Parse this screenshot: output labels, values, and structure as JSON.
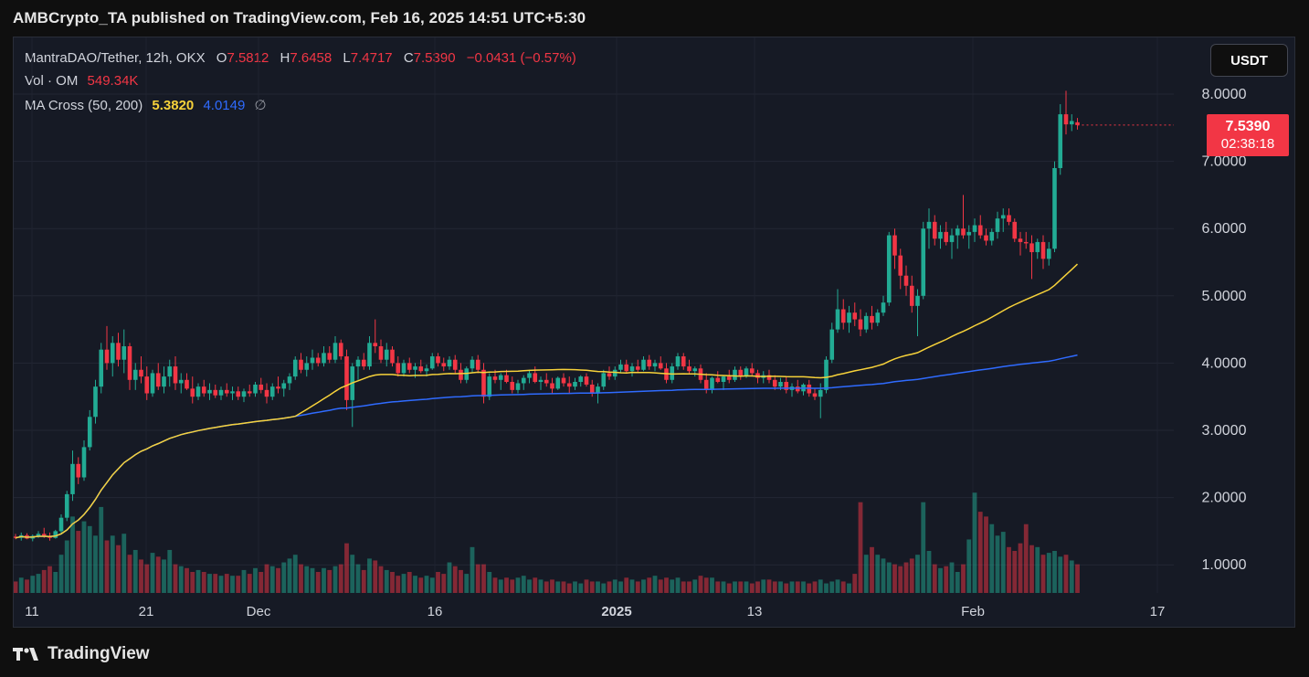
{
  "header": {
    "publisher_line": "AMBCrypto_TA published on TradingView.com, Feb 16, 2025 14:51 UTC+5:30"
  },
  "legend": {
    "symbol": "MantraDAO/Tether, 12h, OKX",
    "open_key": "O",
    "open": "7.5812",
    "high_key": "H",
    "high": "7.6458",
    "low_key": "L",
    "low": "7.4717",
    "close_key": "C",
    "close": "7.5390",
    "change": "−0.0431 (−0.57%)",
    "vol_label": "Vol · OM",
    "vol_value": "549.34K",
    "ma_label": "MA Cross (50, 200)",
    "ma_fast": "5.3820",
    "ma_slow": "4.0149",
    "ma_symbol": "∅"
  },
  "currency_button": "USDT",
  "last_price": {
    "price": "7.5390",
    "countdown": "02:38:18"
  },
  "footer": {
    "logo_icon": "tradingview-logo-icon",
    "brand": "TradingView"
  },
  "colors": {
    "up": "#22ab94",
    "down": "#f23645",
    "ma_fast": "#f7d23a",
    "ma_slow": "#2f6bff",
    "background": "#161a25"
  },
  "chart_data": {
    "type": "candlestick",
    "interval": "12h",
    "grid": true,
    "y_axis": {
      "labels": [
        "8.0000",
        "7.0000",
        "6.0000",
        "5.0000",
        "4.0000",
        "3.0000",
        "2.0000",
        "1.0000"
      ],
      "range": [
        0.8,
        8.2
      ]
    },
    "x_axis": {
      "labels": [
        "11",
        "21",
        "Dec",
        "16",
        "2025",
        "13",
        "Feb",
        "17"
      ]
    },
    "ohlc": [
      [
        1.42,
        1.46,
        1.38,
        1.4
      ],
      [
        1.4,
        1.48,
        1.36,
        1.44
      ],
      [
        1.44,
        1.47,
        1.38,
        1.39
      ],
      [
        1.39,
        1.45,
        1.35,
        1.43
      ],
      [
        1.43,
        1.5,
        1.4,
        1.46
      ],
      [
        1.46,
        1.55,
        1.4,
        1.42
      ],
      [
        1.42,
        1.48,
        1.36,
        1.4
      ],
      [
        1.4,
        1.52,
        1.39,
        1.5
      ],
      [
        1.5,
        1.75,
        1.45,
        1.7
      ],
      [
        1.7,
        2.1,
        1.65,
        2.05
      ],
      [
        2.05,
        2.7,
        1.95,
        2.5
      ],
      [
        2.5,
        2.6,
        2.2,
        2.3
      ],
      [
        2.3,
        2.85,
        2.25,
        2.75
      ],
      [
        2.75,
        3.3,
        2.7,
        3.2
      ],
      [
        3.2,
        3.75,
        3.1,
        3.65
      ],
      [
        3.65,
        4.3,
        3.55,
        4.2
      ],
      [
        4.2,
        4.55,
        3.9,
        4.0
      ],
      [
        4.0,
        4.4,
        3.8,
        4.3
      ],
      [
        4.3,
        4.45,
        3.95,
        4.05
      ],
      [
        4.05,
        4.5,
        3.85,
        4.25
      ],
      [
        4.25,
        4.3,
        3.6,
        3.75
      ],
      [
        3.75,
        4.0,
        3.6,
        3.9
      ],
      [
        3.9,
        4.1,
        3.7,
        3.8
      ],
      [
        3.8,
        3.95,
        3.45,
        3.55
      ],
      [
        3.55,
        3.9,
        3.5,
        3.85
      ],
      [
        3.85,
        4.0,
        3.6,
        3.65
      ],
      [
        3.65,
        3.95,
        3.55,
        3.8
      ],
      [
        3.8,
        4.05,
        3.65,
        3.95
      ],
      [
        3.95,
        4.1,
        3.6,
        3.7
      ],
      [
        3.7,
        3.85,
        3.55,
        3.75
      ],
      [
        3.75,
        3.85,
        3.6,
        3.62
      ],
      [
        3.62,
        3.8,
        3.4,
        3.5
      ],
      [
        3.5,
        3.7,
        3.45,
        3.65
      ],
      [
        3.65,
        3.75,
        3.5,
        3.55
      ],
      [
        3.55,
        3.7,
        3.45,
        3.6
      ],
      [
        3.6,
        3.68,
        3.48,
        3.52
      ],
      [
        3.52,
        3.65,
        3.45,
        3.6
      ],
      [
        3.6,
        3.7,
        3.5,
        3.55
      ],
      [
        3.55,
        3.65,
        3.45,
        3.58
      ],
      [
        3.58,
        3.65,
        3.45,
        3.5
      ],
      [
        3.5,
        3.62,
        3.42,
        3.58
      ],
      [
        3.58,
        3.68,
        3.5,
        3.55
      ],
      [
        3.55,
        3.72,
        3.5,
        3.68
      ],
      [
        3.68,
        3.78,
        3.55,
        3.6
      ],
      [
        3.6,
        3.7,
        3.4,
        3.5
      ],
      [
        3.5,
        3.7,
        3.45,
        3.65
      ],
      [
        3.65,
        3.8,
        3.55,
        3.62
      ],
      [
        3.62,
        3.75,
        3.5,
        3.7
      ],
      [
        3.7,
        3.85,
        3.6,
        3.8
      ],
      [
        3.8,
        4.1,
        3.75,
        4.05
      ],
      [
        4.05,
        4.15,
        3.85,
        3.9
      ],
      [
        3.9,
        4.1,
        3.8,
        4.0
      ],
      [
        4.0,
        4.2,
        3.9,
        4.08
      ],
      [
        4.08,
        4.15,
        3.95,
        4.0
      ],
      [
        4.0,
        4.25,
        3.95,
        4.15
      ],
      [
        4.15,
        4.25,
        4.0,
        4.05
      ],
      [
        4.05,
        4.4,
        4.0,
        4.3
      ],
      [
        4.3,
        4.35,
        4.05,
        4.1
      ],
      [
        4.1,
        4.2,
        3.3,
        3.45
      ],
      [
        3.45,
        4.0,
        3.05,
        3.95
      ],
      [
        3.95,
        4.1,
        3.75,
        4.05
      ],
      [
        4.05,
        4.15,
        3.9,
        3.95
      ],
      [
        3.95,
        4.4,
        3.9,
        4.3
      ],
      [
        4.3,
        4.65,
        4.15,
        4.25
      ],
      [
        4.25,
        4.35,
        4.0,
        4.05
      ],
      [
        4.05,
        4.3,
        3.95,
        4.2
      ],
      [
        4.2,
        4.25,
        3.95,
        4.0
      ],
      [
        4.0,
        4.1,
        3.8,
        3.85
      ],
      [
        3.85,
        4.05,
        3.8,
        4.0
      ],
      [
        4.0,
        4.08,
        3.85,
        3.9
      ],
      [
        3.9,
        4.0,
        3.78,
        3.95
      ],
      [
        3.95,
        4.05,
        3.85,
        3.88
      ],
      [
        3.88,
        3.98,
        3.8,
        3.92
      ],
      [
        3.92,
        4.15,
        3.9,
        4.1
      ],
      [
        4.1,
        4.15,
        3.95,
        4.0
      ],
      [
        4.0,
        4.08,
        3.88,
        3.95
      ],
      [
        3.95,
        4.1,
        3.9,
        4.05
      ],
      [
        4.05,
        4.12,
        3.85,
        3.9
      ],
      [
        3.9,
        4.0,
        3.7,
        3.75
      ],
      [
        3.75,
        3.95,
        3.7,
        3.92
      ],
      [
        3.92,
        4.1,
        3.85,
        4.05
      ],
      [
        4.05,
        4.12,
        3.85,
        3.9
      ],
      [
        3.9,
        4.0,
        3.4,
        3.5
      ],
      [
        3.5,
        3.85,
        3.45,
        3.8
      ],
      [
        3.8,
        3.9,
        3.7,
        3.75
      ],
      [
        3.75,
        3.85,
        3.6,
        3.82
      ],
      [
        3.82,
        3.9,
        3.7,
        3.72
      ],
      [
        3.72,
        3.8,
        3.55,
        3.6
      ],
      [
        3.6,
        3.75,
        3.55,
        3.7
      ],
      [
        3.7,
        3.82,
        3.6,
        3.78
      ],
      [
        3.78,
        3.9,
        3.7,
        3.85
      ],
      [
        3.85,
        3.95,
        3.7,
        3.72
      ],
      [
        3.72,
        3.8,
        3.6,
        3.75
      ],
      [
        3.75,
        3.85,
        3.65,
        3.7
      ],
      [
        3.7,
        3.78,
        3.55,
        3.62
      ],
      [
        3.62,
        3.8,
        3.6,
        3.78
      ],
      [
        3.78,
        3.85,
        3.65,
        3.7
      ],
      [
        3.7,
        3.8,
        3.55,
        3.65
      ],
      [
        3.65,
        3.78,
        3.6,
        3.72
      ],
      [
        3.72,
        3.82,
        3.65,
        3.8
      ],
      [
        3.8,
        3.85,
        3.65,
        3.68
      ],
      [
        3.68,
        3.75,
        3.5,
        3.55
      ],
      [
        3.55,
        3.7,
        3.4,
        3.65
      ],
      [
        3.65,
        3.9,
        3.6,
        3.85
      ],
      [
        3.85,
        3.95,
        3.75,
        3.8
      ],
      [
        3.8,
        3.95,
        3.75,
        3.9
      ],
      [
        3.9,
        4.05,
        3.85,
        3.98
      ],
      [
        3.98,
        4.05,
        3.85,
        3.88
      ],
      [
        3.88,
        4.0,
        3.8,
        3.95
      ],
      [
        3.95,
        4.05,
        3.85,
        3.9
      ],
      [
        3.9,
        4.1,
        3.88,
        4.05
      ],
      [
        4.05,
        4.12,
        3.9,
        3.95
      ],
      [
        3.95,
        4.05,
        3.88,
        4.0
      ],
      [
        4.0,
        4.1,
        3.9,
        3.92
      ],
      [
        3.92,
        4.0,
        3.7,
        3.75
      ],
      [
        3.75,
        4.0,
        3.7,
        3.95
      ],
      [
        3.95,
        4.15,
        3.9,
        4.1
      ],
      [
        4.1,
        4.15,
        3.9,
        3.95
      ],
      [
        3.95,
        4.05,
        3.85,
        3.88
      ],
      [
        3.88,
        3.95,
        3.8,
        3.92
      ],
      [
        3.92,
        3.98,
        3.7,
        3.75
      ],
      [
        3.75,
        3.85,
        3.55,
        3.6
      ],
      [
        3.6,
        3.8,
        3.55,
        3.78
      ],
      [
        3.78,
        3.88,
        3.7,
        3.72
      ],
      [
        3.72,
        3.82,
        3.6,
        3.8
      ],
      [
        3.8,
        3.9,
        3.7,
        3.75
      ],
      [
        3.75,
        3.95,
        3.72,
        3.9
      ],
      [
        3.9,
        3.95,
        3.75,
        3.8
      ],
      [
        3.8,
        3.95,
        3.78,
        3.92
      ],
      [
        3.92,
        4.0,
        3.8,
        3.85
      ],
      [
        3.85,
        3.9,
        3.7,
        3.78
      ],
      [
        3.78,
        3.88,
        3.7,
        3.82
      ],
      [
        3.82,
        3.9,
        3.7,
        3.75
      ],
      [
        3.75,
        3.82,
        3.6,
        3.65
      ],
      [
        3.65,
        3.78,
        3.6,
        3.72
      ],
      [
        3.72,
        3.8,
        3.55,
        3.6
      ],
      [
        3.6,
        3.7,
        3.5,
        3.65
      ],
      [
        3.65,
        3.75,
        3.55,
        3.58
      ],
      [
        3.58,
        3.7,
        3.52,
        3.68
      ],
      [
        3.68,
        3.75,
        3.5,
        3.55
      ],
      [
        3.55,
        3.62,
        3.45,
        3.5
      ],
      [
        3.5,
        3.7,
        3.18,
        3.6
      ],
      [
        3.6,
        4.1,
        3.55,
        4.05
      ],
      [
        4.05,
        4.6,
        4.0,
        4.5
      ],
      [
        4.5,
        5.1,
        4.45,
        4.8
      ],
      [
        4.8,
        4.95,
        4.5,
        4.6
      ],
      [
        4.6,
        4.85,
        4.45,
        4.75
      ],
      [
        4.75,
        4.9,
        4.55,
        4.65
      ],
      [
        4.65,
        4.8,
        4.4,
        4.5
      ],
      [
        4.5,
        4.75,
        4.45,
        4.7
      ],
      [
        4.7,
        4.85,
        4.5,
        4.6
      ],
      [
        4.6,
        4.8,
        4.55,
        4.75
      ],
      [
        4.75,
        5.0,
        4.7,
        4.9
      ],
      [
        4.9,
        5.95,
        4.85,
        5.9
      ],
      [
        5.9,
        6.0,
        5.4,
        5.6
      ],
      [
        5.6,
        5.7,
        5.1,
        5.3
      ],
      [
        5.3,
        5.45,
        5.0,
        5.15
      ],
      [
        5.15,
        5.3,
        4.75,
        4.85
      ],
      [
        4.85,
        5.1,
        4.4,
        5.0
      ],
      [
        5.0,
        6.1,
        4.95,
        6.0
      ],
      [
        6.0,
        6.3,
        5.7,
        6.1
      ],
      [
        6.1,
        6.2,
        5.75,
        5.85
      ],
      [
        5.85,
        6.05,
        5.7,
        5.95
      ],
      [
        5.95,
        6.1,
        5.75,
        5.8
      ],
      [
        5.8,
        6.0,
        5.55,
        5.9
      ],
      [
        5.9,
        6.05,
        5.7,
        6.0
      ],
      [
        6.0,
        6.5,
        5.85,
        5.9
      ],
      [
        5.9,
        6.05,
        5.7,
        5.95
      ],
      [
        5.95,
        6.15,
        5.8,
        6.05
      ],
      [
        6.05,
        6.2,
        5.85,
        5.9
      ],
      [
        5.9,
        6.0,
        5.75,
        5.82
      ],
      [
        5.82,
        6.0,
        5.75,
        5.95
      ],
      [
        5.95,
        6.25,
        5.85,
        6.15
      ],
      [
        6.15,
        6.3,
        5.95,
        6.2
      ],
      [
        6.2,
        6.3,
        6.05,
        6.1
      ],
      [
        6.1,
        6.15,
        5.8,
        5.85
      ],
      [
        5.85,
        5.95,
        5.6,
        5.8
      ],
      [
        5.8,
        5.95,
        5.7,
        5.78
      ],
      [
        5.78,
        5.9,
        5.25,
        5.65
      ],
      [
        5.65,
        5.85,
        5.55,
        5.8
      ],
      [
        5.8,
        5.9,
        5.4,
        5.55
      ],
      [
        5.55,
        5.8,
        5.45,
        5.7
      ],
      [
        5.7,
        7.0,
        5.65,
        6.9
      ],
      [
        6.9,
        7.85,
        6.8,
        7.7
      ],
      [
        7.7,
        8.05,
        7.4,
        7.55
      ],
      [
        7.55,
        7.7,
        7.45,
        7.6
      ],
      [
        7.5812,
        7.6458,
        7.4717,
        7.539
      ]
    ],
    "volume": [
      12,
      16,
      14,
      18,
      20,
      24,
      28,
      22,
      40,
      55,
      80,
      65,
      75,
      70,
      60,
      90,
      55,
      60,
      50,
      62,
      40,
      45,
      35,
      30,
      42,
      38,
      35,
      45,
      30,
      28,
      26,
      22,
      24,
      22,
      20,
      20,
      18,
      20,
      18,
      18,
      24,
      20,
      26,
      22,
      30,
      28,
      26,
      32,
      36,
      40,
      30,
      28,
      26,
      22,
      26,
      24,
      28,
      30,
      52,
      40,
      30,
      24,
      36,
      34,
      28,
      24,
      22,
      18,
      20,
      22,
      18,
      16,
      18,
      16,
      22,
      20,
      32,
      28,
      24,
      20,
      48,
      30,
      30,
      22,
      16,
      14,
      16,
      14,
      16,
      18,
      14,
      16,
      14,
      12,
      14,
      12,
      12,
      10,
      12,
      10,
      14,
      12,
      12,
      10,
      12,
      14,
      12,
      16,
      14,
      12,
      14,
      16,
      18,
      14,
      16,
      14,
      16,
      12,
      12,
      14,
      18,
      16,
      16,
      12,
      12,
      10,
      12,
      12,
      12,
      10,
      12,
      14,
      14,
      12,
      12,
      10,
      12,
      12,
      12,
      10,
      12,
      14,
      10,
      12,
      14,
      12,
      10,
      20,
      95,
      40,
      48,
      40,
      36,
      32,
      30,
      28,
      32,
      36,
      40,
      95,
      44,
      30,
      26,
      28,
      32,
      22,
      30,
      56,
      105,
      85,
      80,
      72,
      60,
      64,
      48,
      44,
      52,
      72,
      50,
      48,
      40,
      42,
      44,
      38,
      40,
      34,
      30,
      28,
      26,
      36,
      30,
      34,
      66,
      54,
      50,
      25
    ]
  }
}
